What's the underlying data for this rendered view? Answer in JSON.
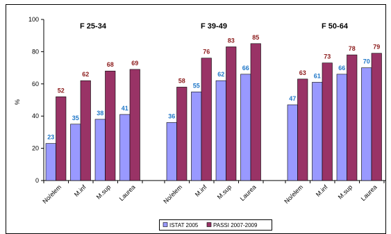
{
  "chart_data": {
    "type": "bar",
    "ylabel": "%",
    "ylim": [
      0,
      100
    ],
    "yticks": [
      0,
      20,
      40,
      60,
      80,
      100
    ],
    "grid": false,
    "legend_position": "bottom",
    "groups": [
      {
        "title": "F 25-34",
        "categories": [
          "No/elem",
          "M.inf",
          "M.sup",
          "Laurea"
        ],
        "series": [
          {
            "name": "ISTAT 2005",
            "values": [
              23,
              35,
              38,
              41
            ]
          },
          {
            "name": "PASSI 2007-2009",
            "values": [
              52,
              62,
              68,
              69
            ]
          }
        ]
      },
      {
        "title": "F 39-49",
        "categories": [
          "No/elem",
          "M.inf",
          "M.sup",
          "Laurea"
        ],
        "series": [
          {
            "name": "ISTAT 2005",
            "values": [
              36,
              55,
              62,
              66
            ]
          },
          {
            "name": "PASSI 2007-2009",
            "values": [
              58,
              76,
              83,
              85
            ]
          }
        ]
      },
      {
        "title": "F 50-64",
        "categories": [
          "No/elem",
          "M.inf",
          "M.sup",
          "Laurea"
        ],
        "series": [
          {
            "name": "ISTAT 2005",
            "values": [
              47,
              61,
              66,
              70
            ]
          },
          {
            "name": "PASSI 2007-2009",
            "values": [
              63,
              73,
              78,
              79
            ]
          }
        ]
      }
    ],
    "legend": [
      "ISTAT 2005",
      "PASSI 2007-2009"
    ],
    "colors": {
      "ISTAT 2005": "#9999ff",
      "PASSI 2007-2009": "#993366",
      "ISTAT 2005_label": "#1f77c8",
      "PASSI 2007-2009_label": "#8b1a1a"
    }
  }
}
